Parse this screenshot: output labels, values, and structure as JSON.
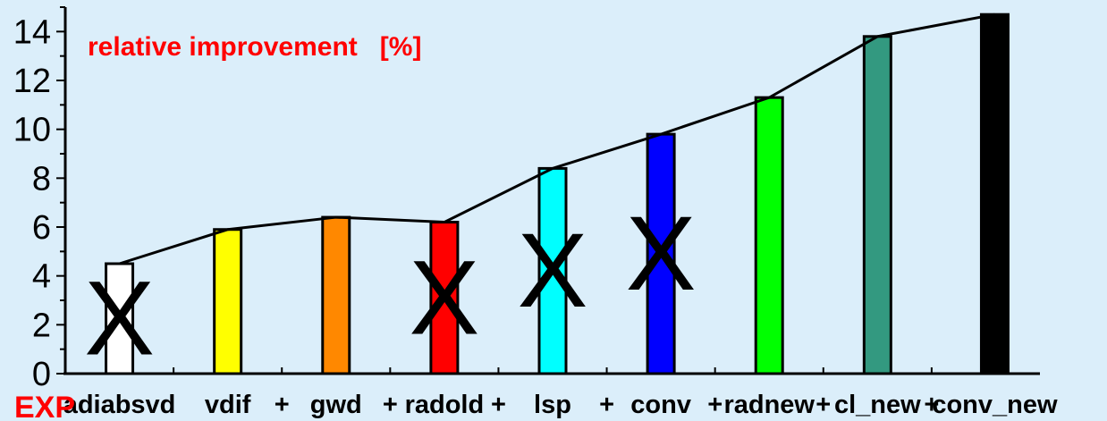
{
  "chart_data": {
    "type": "bar",
    "title": "relative improvement   [%]",
    "xlabel": "EXP",
    "ylabel": "",
    "ylim": [
      0,
      15
    ],
    "yticks": [
      0,
      2,
      4,
      6,
      8,
      10,
      12,
      14
    ],
    "categories": [
      "adiabsvd",
      "vdif",
      "gwd",
      "radold",
      "lsp",
      "conv",
      "radnew",
      "cl_new",
      "conv_new"
    ],
    "category_prefixes": [
      "",
      "",
      "+",
      "+",
      "+",
      "+",
      "+",
      "+",
      "+"
    ],
    "values": [
      4.5,
      5.9,
      6.4,
      6.2,
      8.4,
      9.8,
      11.3,
      13.8,
      14.7
    ],
    "colors": [
      "#ffffff",
      "#ffff00",
      "#ff8800",
      "#ff0000",
      "#00ffff",
      "#0000ff",
      "#00ff00",
      "#339980",
      "#000000"
    ],
    "line_values": [
      4.5,
      5.9,
      6.4,
      6.2,
      8.4,
      9.8,
      11.3,
      13.8,
      14.7
    ],
    "crossed_out": [
      "adiabsvd",
      "radold",
      "lsp",
      "conv"
    ],
    "cross_symbol": "X",
    "title_color": "#ff0000",
    "xlabel_color": "#ff0000",
    "grid": false
  }
}
